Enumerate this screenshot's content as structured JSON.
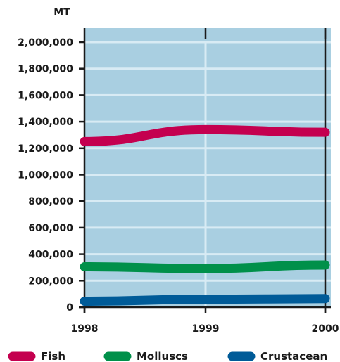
{
  "chart_data": {
    "type": "line",
    "unit_label": "MT",
    "x": [
      "1998",
      "1999",
      "2000"
    ],
    "ylim": [
      0,
      2000000
    ],
    "y_ticks": [
      "0",
      "200,000",
      "400,000",
      "600,000",
      "800,000",
      "1,000,000",
      "1,200,000",
      "1,400,000",
      "1,600,000",
      "1,800,000",
      "2,000,000"
    ],
    "grid": true,
    "legend_position": "bottom",
    "series": [
      {
        "name": "Fish",
        "color": "#c4004f",
        "values": [
          1250000,
          1340000,
          1320000
        ]
      },
      {
        "name": "Molluscs",
        "color": "#00904a",
        "values": [
          305000,
          292000,
          318000
        ]
      },
      {
        "name": "Crustacean",
        "color": "#005b98",
        "values": [
          45000,
          60000,
          65000
        ]
      }
    ],
    "colors": {
      "plot_background": "#a9cfe1",
      "gridline": "#d8ebf4",
      "axis": "#1a1a1a"
    }
  }
}
